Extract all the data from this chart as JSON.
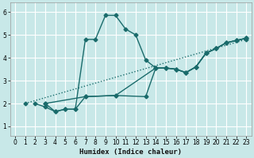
{
  "xlabel": "Humidex (Indice chaleur)",
  "bg_color": "#c8e8e8",
  "grid_color": "#ffffff",
  "line_color": "#1a6b6b",
  "xlim": [
    -0.5,
    23.5
  ],
  "ylim": [
    0.6,
    6.4
  ],
  "xticks": [
    0,
    1,
    2,
    3,
    4,
    5,
    6,
    7,
    8,
    9,
    10,
    11,
    12,
    13,
    14,
    15,
    16,
    17,
    18,
    19,
    20,
    21,
    22,
    23
  ],
  "yticks": [
    1,
    2,
    3,
    4,
    5,
    6
  ],
  "line_dotted": {
    "x": [
      1,
      23
    ],
    "y": [
      2.0,
      4.8
    ]
  },
  "line_main": {
    "x": [
      2,
      3,
      4,
      5,
      6,
      7,
      8,
      9,
      10,
      11,
      12,
      13,
      14,
      15,
      16,
      17,
      18,
      19,
      20,
      21,
      22,
      23
    ],
    "y": [
      2.0,
      1.85,
      1.65,
      1.75,
      1.75,
      4.8,
      4.8,
      5.85,
      5.85,
      5.25,
      5.0,
      3.9,
      3.55,
      3.55,
      3.5,
      3.35,
      3.6,
      4.2,
      4.4,
      4.65,
      4.75,
      4.85
    ]
  },
  "line_b": {
    "x": [
      3,
      4,
      5,
      6,
      7,
      10,
      14,
      15,
      16,
      17,
      18,
      19,
      20,
      21,
      22,
      23
    ],
    "y": [
      2.0,
      1.65,
      1.75,
      1.75,
      2.3,
      2.35,
      3.55,
      3.55,
      3.5,
      3.35,
      3.6,
      4.2,
      4.4,
      4.65,
      4.75,
      4.85
    ]
  },
  "line_c": {
    "x": [
      3,
      7,
      10,
      13,
      14,
      15,
      16,
      17,
      18,
      19,
      20,
      21,
      22,
      23
    ],
    "y": [
      2.0,
      2.3,
      2.35,
      2.3,
      3.55,
      3.55,
      3.5,
      3.35,
      3.6,
      4.2,
      4.4,
      4.65,
      4.75,
      4.85
    ]
  }
}
